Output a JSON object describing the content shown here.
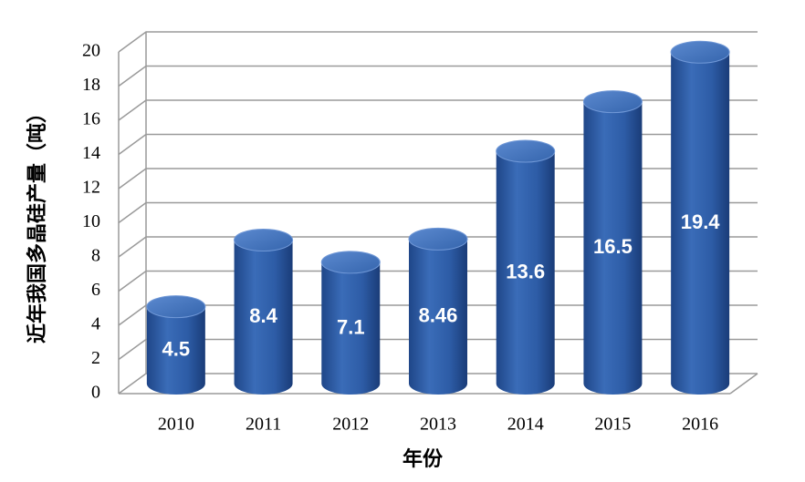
{
  "chart_data": {
    "type": "bar",
    "x_label": "年份",
    "y_label": "近年我国多晶硅产量（吨）",
    "categories": [
      "2010",
      "2011",
      "2012",
      "2013",
      "2014",
      "2015",
      "2016"
    ],
    "values": [
      4.5,
      8.4,
      7.1,
      8.46,
      13.6,
      16.5,
      19.4
    ],
    "color": "#2f5fa8",
    "ylim": [
      0,
      20
    ],
    "yticks": [
      0,
      2,
      4,
      6,
      8,
      10,
      12,
      14,
      16,
      18,
      20
    ],
    "grid": true
  }
}
